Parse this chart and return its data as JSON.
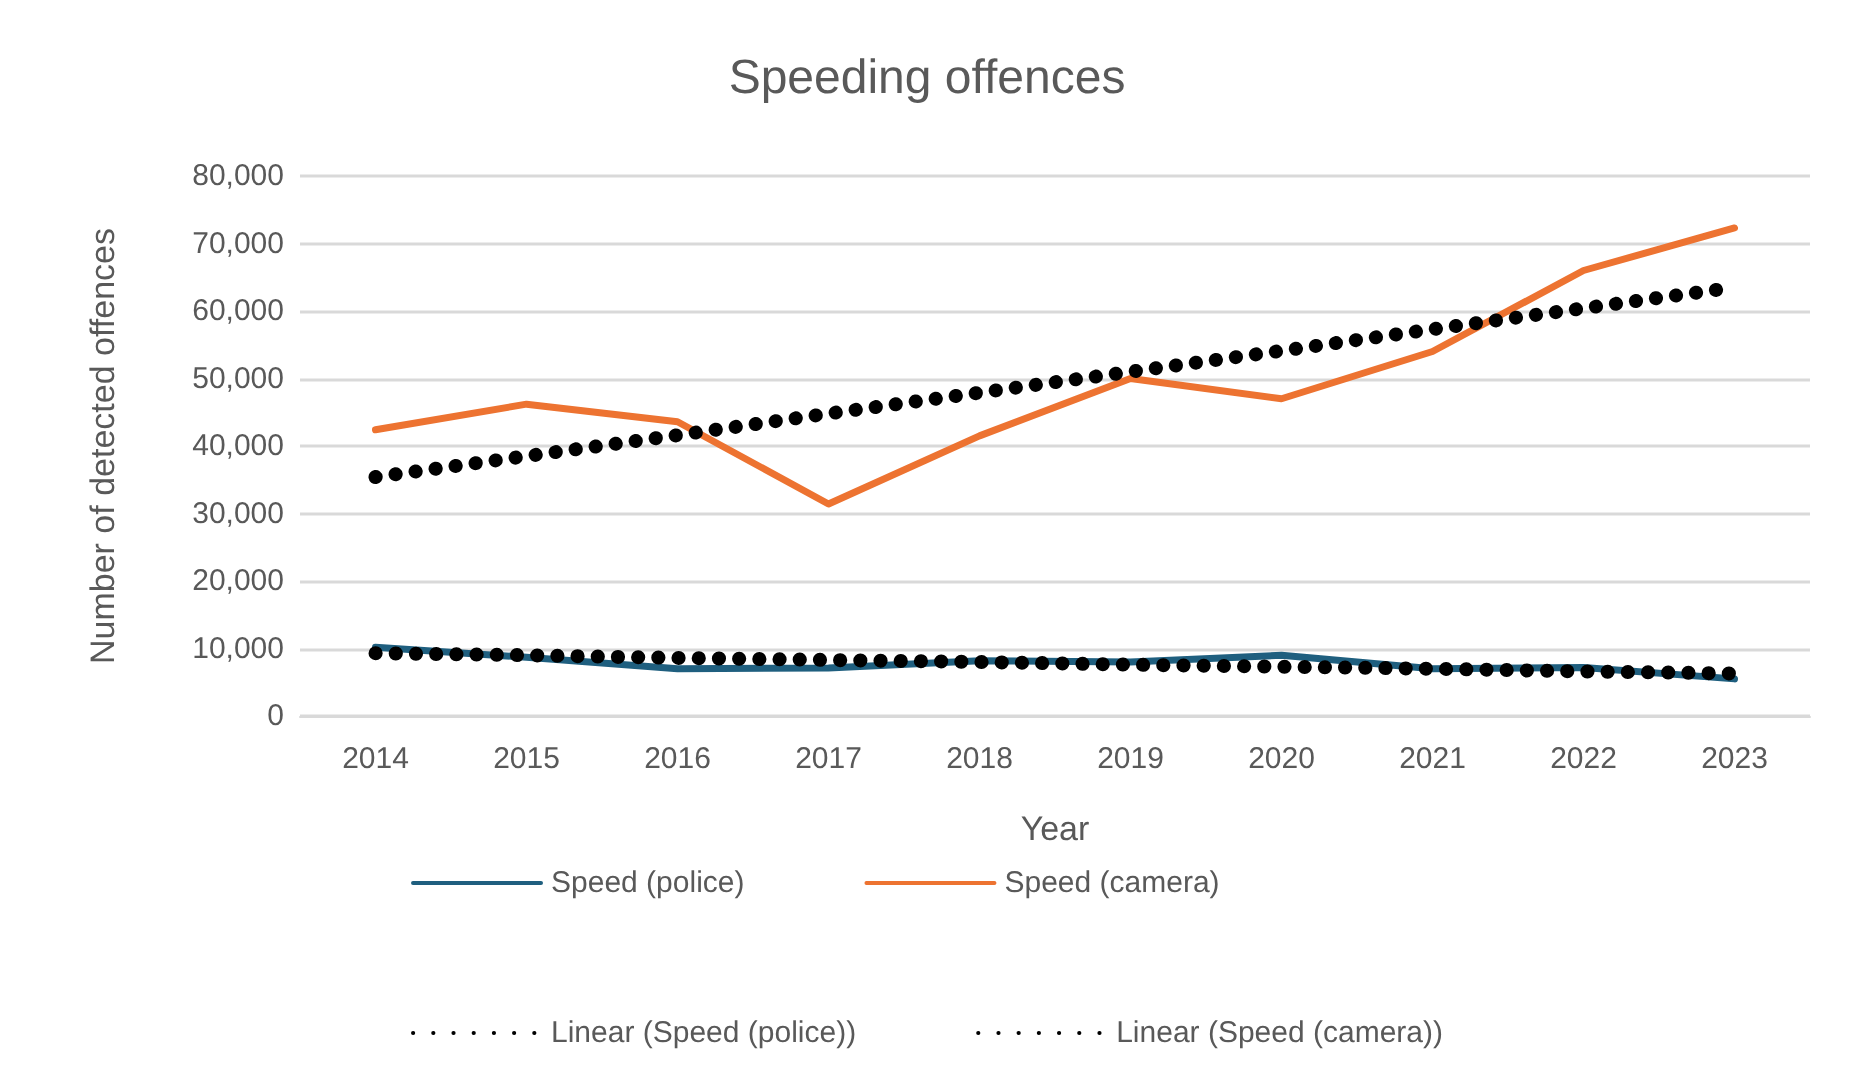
{
  "chart_data": {
    "type": "line",
    "title": "Speeding offences",
    "xlabel": "Year",
    "ylabel": "Number of detected offences",
    "categories": [
      "2014",
      "2015",
      "2016",
      "2017",
      "2018",
      "2019",
      "2020",
      "2021",
      "2022",
      "2023"
    ],
    "series": [
      {
        "name": "Speed (police)",
        "color": "#1f5f7f",
        "line_style": "solid",
        "values": [
          10200,
          8700,
          7000,
          7100,
          8200,
          8000,
          9000,
          7000,
          7200,
          5500
        ]
      },
      {
        "name": "Speed (camera)",
        "color": "#ed7331",
        "line_style": "solid",
        "values": [
          42400,
          46200,
          43600,
          31400,
          41500,
          50000,
          47000,
          54000,
          66000,
          72300
        ]
      },
      {
        "name": "Linear (Speed (police))",
        "color": "#000000",
        "line_style": "dotted",
        "values": [
          9300,
          9000,
          8600,
          8300,
          8000,
          7600,
          7300,
          7000,
          6600,
          6300
        ]
      },
      {
        "name": "Linear (Speed (camera))",
        "color": "#000000",
        "line_style": "dotted",
        "values": [
          35400,
          38500,
          41600,
          44800,
          47900,
          51000,
          54100,
          57300,
          60400,
          63500
        ]
      }
    ],
    "ylim": [
      0,
      80000
    ],
    "yticks": [
      0,
      {
        "value": 10000,
        "label": "10,000"
      },
      {
        "value": 20000,
        "label": "20,000"
      },
      {
        "value": 30000,
        "label": "30,000"
      },
      {
        "value": 40000,
        "label": "40,000"
      },
      {
        "value": 50000,
        "label": "50,000"
      },
      {
        "value": 60000,
        "label": "60,000"
      },
      {
        "value": 70000,
        "label": "70,000"
      },
      {
        "value": 80000,
        "label": "80,000"
      }
    ],
    "grid": "y",
    "legend": "bottom",
    "marker": "none"
  }
}
